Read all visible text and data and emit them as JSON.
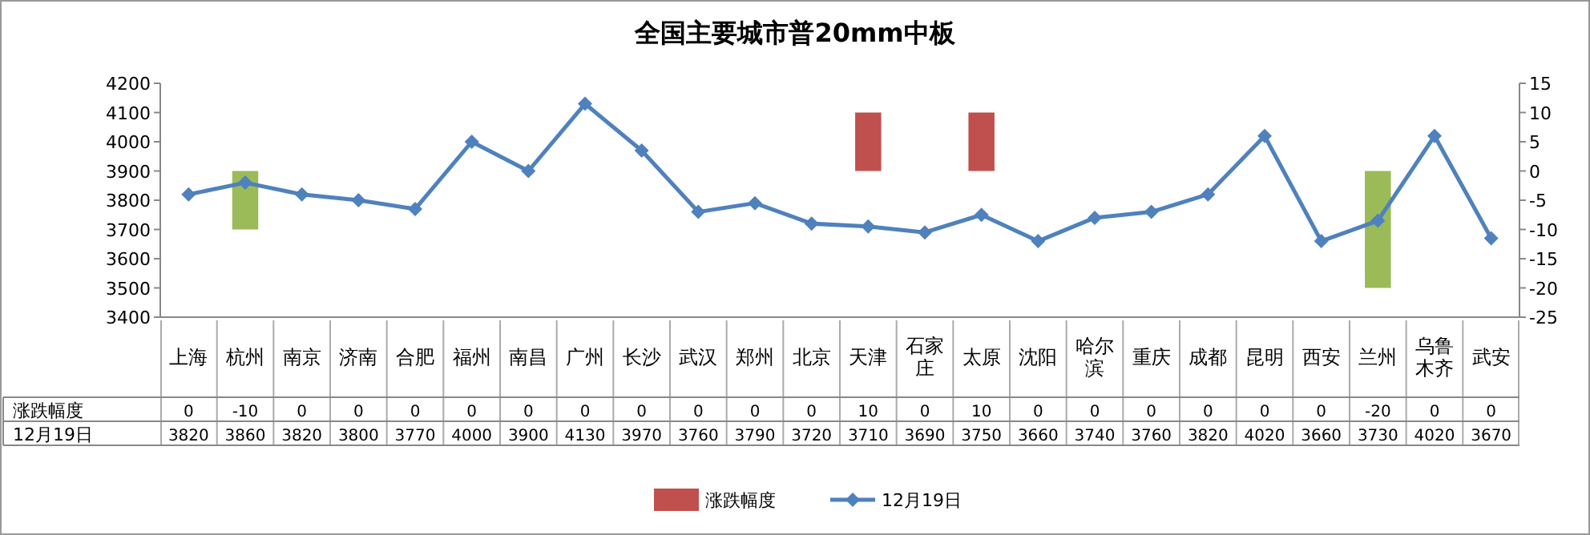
{
  "chart_data": {
    "type": "bar",
    "title": "全国主要城市普20mm中板",
    "categories": [
      "上海",
      "杭州",
      "南京",
      "济南",
      "合肥",
      "福州",
      "南昌",
      "广州",
      "长沙",
      "武汉",
      "郑州",
      "北京",
      "天津",
      "石家庄",
      "太原",
      "沈阳",
      "哈尔滨",
      "重庆",
      "成都",
      "昆明",
      "西安",
      "兰州",
      "乌鲁木齐",
      "武安"
    ],
    "series": [
      {
        "name": "涨跌幅度",
        "axis": "y2",
        "color": "#c0504d",
        "colors": [
          null,
          "#9bbb59",
          null,
          null,
          null,
          null,
          null,
          null,
          null,
          null,
          null,
          null,
          "#c0504d",
          null,
          "#c0504d",
          null,
          null,
          null,
          null,
          null,
          null,
          "#9bbb59",
          null,
          null
        ],
        "values": [
          0,
          -10,
          0,
          0,
          0,
          0,
          0,
          0,
          0,
          0,
          0,
          0,
          10,
          0,
          10,
          0,
          0,
          0,
          0,
          0,
          0,
          -20,
          0,
          0
        ]
      },
      {
        "name": "12月19日",
        "type": "line",
        "axis": "y",
        "color": "#4f81bd",
        "marker": "diamond",
        "values": [
          3820,
          3860,
          3820,
          3800,
          3770,
          4000,
          3900,
          4130,
          3970,
          3760,
          3790,
          3720,
          3710,
          3690,
          3750,
          3660,
          3740,
          3760,
          3820,
          4020,
          3660,
          3730,
          4020,
          3670
        ]
      }
    ],
    "ylim": [
      3400,
      4200
    ],
    "yticks": [
      3400,
      3500,
      3600,
      3700,
      3800,
      3900,
      4000,
      4100,
      4200
    ],
    "y2lim": [
      -25,
      15
    ],
    "y2ticks": [
      -25,
      -20,
      -15,
      -10,
      -5,
      0,
      5,
      10,
      15
    ],
    "data_labels": true,
    "legend": "bottom"
  }
}
